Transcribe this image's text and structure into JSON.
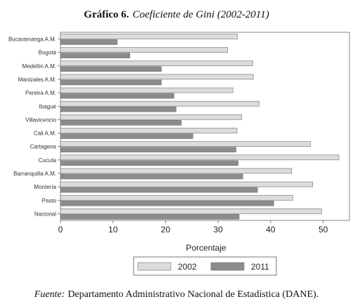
{
  "title": {
    "prefix": "Gráfico 6.",
    "text": "Coeficiente de Gini (2002-2011)"
  },
  "source": {
    "label": "Fuente:",
    "text": "Departamento Administrativo Nacional de Estadística (DANE)."
  },
  "chart_data": {
    "type": "bar",
    "orientation": "horizontal",
    "categories": [
      "Bucaramanga A.M.",
      "Bogotá",
      "Medellín A.M.",
      "Manizales A.M.",
      "Pereira A.M.",
      "Ibagué",
      "Villavicencio",
      "Cali A.M.",
      "Cartagena",
      "Cucuta",
      "Barranquilla A.M.",
      "Montería",
      "Pasto",
      "Nacional"
    ],
    "series": [
      {
        "name": "2002",
        "color": "#dcdcdc",
        "values": [
          33.7,
          31.8,
          36.6,
          36.7,
          32.8,
          37.8,
          34.5,
          33.6,
          47.6,
          53.0,
          44.0,
          48.0,
          44.2,
          49.7
        ]
      },
      {
        "name": "2011",
        "color": "#8c8c8c",
        "values": [
          10.8,
          13.2,
          19.2,
          19.2,
          21.6,
          22.0,
          23.0,
          25.2,
          33.4,
          33.8,
          34.7,
          37.5,
          40.6,
          34.0
        ]
      }
    ],
    "xlabel": "Porcentaje",
    "ylabel": "",
    "xlim": [
      0,
      55
    ],
    "x_ticks": [
      "0",
      "10",
      "20",
      "30",
      "40",
      "50"
    ],
    "grid": false,
    "legend_position": "bottom"
  }
}
